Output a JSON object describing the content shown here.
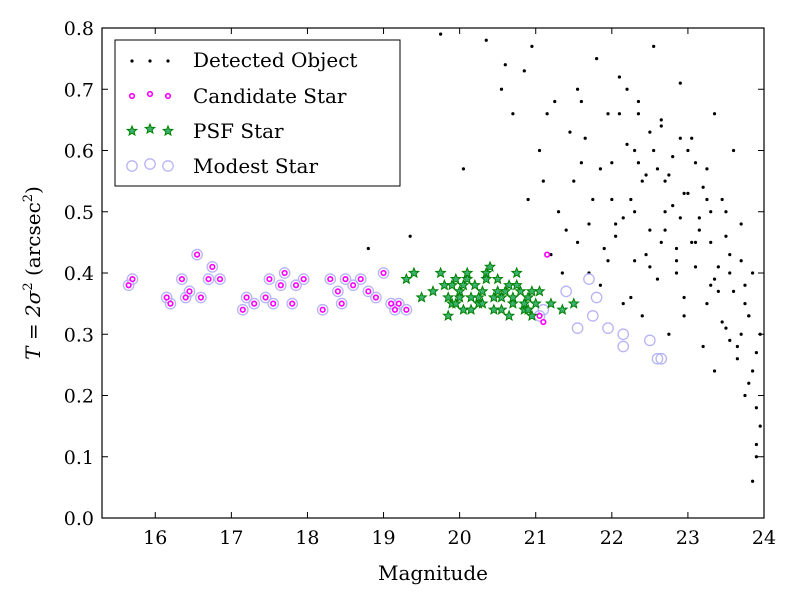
{
  "chart_data": {
    "type": "scatter",
    "xlabel": "Magnitude",
    "ylabel_prefix": "T = 2σ",
    "ylabel_exp1": "2",
    "ylabel_unit": " (arcsec",
    "ylabel_exp2": "2",
    "ylabel_close": ")",
    "xlim": [
      15.3,
      24.0
    ],
    "ylim": [
      0.0,
      0.8
    ],
    "xticks": [
      "16",
      "17",
      "18",
      "19",
      "20",
      "21",
      "22",
      "23",
      "24"
    ],
    "yticks": [
      "0.0",
      "0.1",
      "0.2",
      "0.3",
      "0.4",
      "0.5",
      "0.6",
      "0.7",
      "0.8"
    ],
    "legend_position": "top-left",
    "colors": {
      "detected": "#000000",
      "candidate": "#ff00ff",
      "psf": "#008000",
      "modest": "#b7b4f5"
    },
    "series": [
      {
        "name": "Detected Object",
        "marker": "dot",
        "x": [
          18.8,
          19.35,
          19.75,
          20.05,
          20.35,
          20.55,
          20.7,
          20.9,
          21.05,
          21.2,
          21.35,
          21.5,
          21.55,
          21.65,
          21.7,
          21.8,
          21.85,
          21.95,
          22.0,
          22.05,
          22.1,
          22.15,
          22.2,
          22.25,
          22.3,
          22.35,
          22.4,
          22.45,
          22.5,
          22.55,
          22.6,
          22.65,
          22.7,
          22.75,
          22.8,
          22.85,
          22.9,
          22.95,
          23.0,
          23.05,
          23.1,
          23.15,
          23.2,
          23.25,
          23.3,
          23.35,
          23.4,
          23.45,
          23.5,
          23.55,
          23.6,
          23.65,
          23.7,
          23.75,
          23.8,
          23.85,
          23.9,
          23.95,
          21.3,
          21.6,
          21.9,
          22.1,
          22.3,
          22.5,
          22.7,
          22.9,
          23.1,
          23.3,
          23.5,
          23.7,
          23.9,
          21.45,
          21.75,
          22.05,
          22.35,
          22.65,
          22.95,
          23.25,
          23.55,
          23.85,
          20.85,
          21.15,
          21.4,
          21.7,
          22.0,
          22.3,
          22.6,
          22.9,
          23.2,
          23.5,
          23.8,
          22.2,
          22.5,
          22.8,
          23.1,
          23.4,
          23.7,
          22.4,
          22.7,
          23.0,
          23.3,
          23.6,
          23.95,
          23.75,
          23.9,
          23.85,
          22.15,
          22.45,
          22.75,
          23.05,
          23.35,
          23.65,
          21.25,
          21.55,
          21.85,
          22.25,
          22.55,
          22.85,
          23.15,
          23.45,
          23.75,
          20.6,
          20.95,
          21.1,
          21.6,
          21.95,
          22.65,
          22.95,
          23.25,
          23.55,
          23.9,
          22.35,
          22.85,
          23.35,
          23.8
        ],
        "y": [
          0.44,
          0.46,
          0.79,
          0.57,
          0.78,
          0.7,
          0.66,
          0.52,
          0.6,
          0.43,
          0.4,
          0.55,
          0.7,
          0.62,
          0.48,
          0.75,
          0.38,
          0.66,
          0.58,
          0.46,
          0.72,
          0.35,
          0.61,
          0.52,
          0.42,
          0.68,
          0.33,
          0.56,
          0.47,
          0.77,
          0.39,
          0.64,
          0.5,
          0.3,
          0.59,
          0.44,
          0.71,
          0.36,
          0.53,
          0.62,
          0.41,
          0.49,
          0.28,
          0.57,
          0.45,
          0.66,
          0.37,
          0.52,
          0.31,
          0.43,
          0.6,
          0.26,
          0.48,
          0.35,
          0.22,
          0.4,
          0.18,
          0.3,
          0.5,
          0.58,
          0.44,
          0.66,
          0.5,
          0.41,
          0.55,
          0.62,
          0.45,
          0.38,
          0.5,
          0.42,
          0.27,
          0.63,
          0.52,
          0.48,
          0.58,
          0.45,
          0.53,
          0.35,
          0.4,
          0.24,
          0.73,
          0.66,
          0.47,
          0.4,
          0.52,
          0.6,
          0.57,
          0.49,
          0.54,
          0.46,
          0.33,
          0.7,
          0.63,
          0.51,
          0.58,
          0.41,
          0.3,
          0.55,
          0.47,
          0.6,
          0.5,
          0.37,
          0.15,
          0.2,
          0.1,
          0.06,
          0.49,
          0.43,
          0.56,
          0.45,
          0.39,
          0.28,
          0.68,
          0.45,
          0.57,
          0.36,
          0.6,
          0.42,
          0.47,
          0.32,
          0.38,
          0.74,
          0.77,
          0.55,
          0.68,
          0.42,
          0.65,
          0.33,
          0.52,
          0.29,
          0.12,
          0.66,
          0.4,
          0.24,
          0.33
        ]
      },
      {
        "name": "Candidate Star",
        "marker": "circle-small",
        "x": [
          15.65,
          15.7,
          16.15,
          16.2,
          16.35,
          16.4,
          16.45,
          16.55,
          16.6,
          16.7,
          16.75,
          16.85,
          17.15,
          17.2,
          17.3,
          17.45,
          17.5,
          17.55,
          17.65,
          17.7,
          17.8,
          17.85,
          17.95,
          18.2,
          18.3,
          18.4,
          18.45,
          18.5,
          18.6,
          18.7,
          18.8,
          18.9,
          19.0,
          19.1,
          19.15,
          19.2,
          19.3,
          21.05,
          21.1,
          21.15
        ],
        "y": [
          0.38,
          0.39,
          0.36,
          0.35,
          0.39,
          0.36,
          0.37,
          0.43,
          0.36,
          0.39,
          0.41,
          0.39,
          0.34,
          0.36,
          0.35,
          0.36,
          0.39,
          0.35,
          0.38,
          0.4,
          0.35,
          0.38,
          0.39,
          0.34,
          0.39,
          0.37,
          0.35,
          0.39,
          0.38,
          0.39,
          0.37,
          0.36,
          0.4,
          0.35,
          0.34,
          0.35,
          0.34,
          0.33,
          0.32,
          0.43
        ]
      },
      {
        "name": "PSF Star",
        "marker": "star",
        "x": [
          19.3,
          19.4,
          19.5,
          19.65,
          19.75,
          19.8,
          19.85,
          19.9,
          19.95,
          20.0,
          20.05,
          20.1,
          20.15,
          20.2,
          20.25,
          20.3,
          20.35,
          20.4,
          20.45,
          20.5,
          20.55,
          20.6,
          20.65,
          20.7,
          20.75,
          20.8,
          20.85,
          20.9,
          20.95,
          21.0,
          21.05,
          19.85,
          19.95,
          20.05,
          20.15,
          20.25,
          20.35,
          20.45,
          20.55,
          20.65,
          20.75,
          20.85,
          20.95,
          21.2,
          21.35,
          21.5,
          19.9,
          20.0,
          20.1,
          20.3,
          20.5,
          20.7,
          20.9
        ],
        "y": [
          0.39,
          0.4,
          0.36,
          0.37,
          0.4,
          0.38,
          0.36,
          0.35,
          0.39,
          0.37,
          0.34,
          0.39,
          0.36,
          0.38,
          0.35,
          0.37,
          0.4,
          0.41,
          0.36,
          0.39,
          0.34,
          0.37,
          0.38,
          0.35,
          0.4,
          0.37,
          0.34,
          0.36,
          0.33,
          0.35,
          0.37,
          0.33,
          0.35,
          0.38,
          0.34,
          0.36,
          0.39,
          0.34,
          0.36,
          0.33,
          0.38,
          0.35,
          0.37,
          0.35,
          0.34,
          0.35,
          0.38,
          0.36,
          0.4,
          0.35,
          0.37,
          0.36,
          0.34
        ]
      },
      {
        "name": "Modest Star",
        "marker": "circle-large",
        "x": [
          15.65,
          15.7,
          16.15,
          16.2,
          16.35,
          16.4,
          16.45,
          16.55,
          16.6,
          16.7,
          16.75,
          16.85,
          17.15,
          17.2,
          17.3,
          17.45,
          17.5,
          17.55,
          17.65,
          17.7,
          17.8,
          17.85,
          17.95,
          18.2,
          18.3,
          18.4,
          18.45,
          18.5,
          18.6,
          18.7,
          18.8,
          18.9,
          19.0,
          19.1,
          19.15,
          19.2,
          19.3,
          21.05,
          21.1,
          21.4,
          21.55,
          21.7,
          21.75,
          21.8,
          21.95,
          22.15,
          22.5,
          22.65,
          22.15,
          22.6
        ],
        "y": [
          0.38,
          0.39,
          0.36,
          0.35,
          0.39,
          0.36,
          0.37,
          0.43,
          0.36,
          0.39,
          0.41,
          0.39,
          0.34,
          0.36,
          0.35,
          0.36,
          0.39,
          0.35,
          0.38,
          0.4,
          0.35,
          0.38,
          0.39,
          0.34,
          0.39,
          0.37,
          0.35,
          0.39,
          0.38,
          0.39,
          0.37,
          0.36,
          0.4,
          0.35,
          0.34,
          0.35,
          0.34,
          0.33,
          0.34,
          0.37,
          0.31,
          0.39,
          0.33,
          0.36,
          0.31,
          0.3,
          0.29,
          0.26,
          0.28,
          0.26
        ]
      }
    ]
  }
}
